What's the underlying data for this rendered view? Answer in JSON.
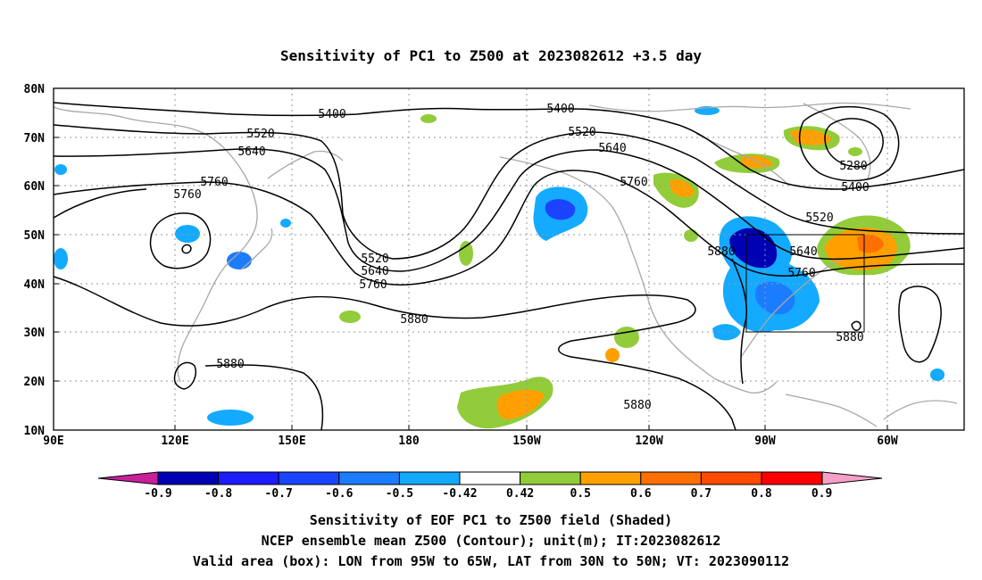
{
  "title": "Sensitivity of PC1 to Z500 at 2023082612 +3.5 day",
  "lat_labels": [
    "80N",
    "70N",
    "60N",
    "50N",
    "40N",
    "30N",
    "20N",
    "10N"
  ],
  "lon_labels": [
    "90E",
    "120E",
    "150E",
    "180",
    "150W",
    "120W",
    "90W",
    "60W"
  ],
  "contour_labels": [
    {
      "text": "5400",
      "contour": "5400"
    },
    {
      "text": "5400",
      "contour": "5400"
    },
    {
      "text": "5400",
      "contour": "5400"
    },
    {
      "text": "5520",
      "contour": "5520"
    },
    {
      "text": "5520",
      "contour": "5520"
    },
    {
      "text": "5520",
      "contour": "5520"
    },
    {
      "text": "5520",
      "contour": "5520"
    },
    {
      "text": "5640",
      "contour": "5640"
    },
    {
      "text": "5640",
      "contour": "5640"
    },
    {
      "text": "5640",
      "contour": "5640"
    },
    {
      "text": "5640",
      "contour": "5640"
    },
    {
      "text": "5760",
      "contour": "5760"
    },
    {
      "text": "5760",
      "contour": "5760"
    },
    {
      "text": "5760",
      "contour": "5760"
    },
    {
      "text": "5760",
      "contour": "5760"
    },
    {
      "text": "5760",
      "contour": "5760"
    },
    {
      "text": "5880",
      "contour": "5880"
    },
    {
      "text": "5880",
      "contour": "5880"
    },
    {
      "text": "5880",
      "contour": "5880"
    },
    {
      "text": "5880",
      "contour": "5880"
    },
    {
      "text": "5880",
      "contour": "5880"
    },
    {
      "text": "5280",
      "contour": "5280"
    }
  ],
  "colorbar": {
    "labels": [
      "-0.9",
      "-0.8",
      "-0.7",
      "-0.6",
      "-0.5",
      "-0.42",
      "0.42",
      "0.5",
      "0.6",
      "0.7",
      "0.8",
      "0.9"
    ],
    "colors": [
      "#0000b4",
      "#1c1cff",
      "#1a44ff",
      "#1c7cff",
      "#14aaff",
      "#ffffff",
      "#92cc3a",
      "#ffa000",
      "#ff7000",
      "#ff4a00",
      "#ff0000"
    ],
    "low_end_color": "#c8209a",
    "high_end_color": "#f4a0c8"
  },
  "valid_box": {
    "lon_from": "95W",
    "lon_to": "65W",
    "lat_from": "30N",
    "lat_to": "50N"
  },
  "footer": {
    "line1": "Sensitivity of EOF PC1 to Z500 field (Shaded)",
    "line2": "NCEP ensemble mean Z500 (Contour); unit(m); IT:2023082612",
    "line3": "Valid area (box): LON from 95W to 65W, LAT from 30N to 50N; VT: 2023090112"
  }
}
